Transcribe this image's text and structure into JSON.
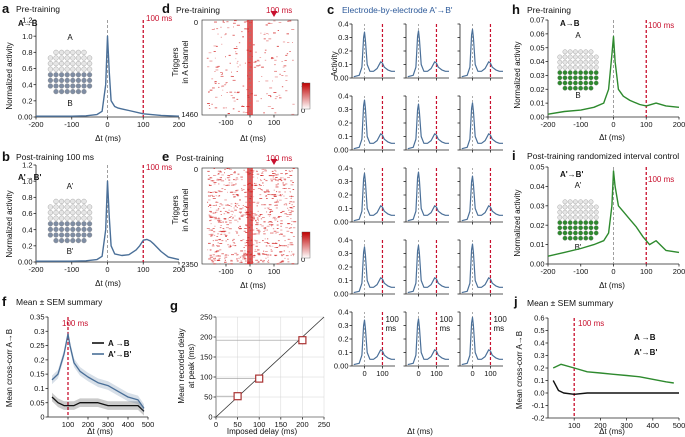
{
  "colors": {
    "blue": "#4a6f98",
    "green": "#2e8a2e",
    "red": "#c8102e",
    "gray": "#9da3ad",
    "grid": "#999999"
  },
  "panels": {
    "a": {
      "letter": "a",
      "title": "Pre-training",
      "pair": "A→B",
      "label_top": "A",
      "label_bottom": "B",
      "ylabel": "Normalized activity",
      "xlabel": "Δt (ms)",
      "marker": "100 ms"
    },
    "b": {
      "letter": "b",
      "title": "Post-training 100 ms",
      "pair": "A'→B'",
      "label_top": "A'",
      "label_bottom": "B'",
      "ylabel": "Normalized activity",
      "xlabel": "Δt (ms)",
      "marker": "100 ms"
    },
    "c": {
      "letter": "c",
      "title": "Electrode-by-electrode A'→B'",
      "ylabel": "Activity",
      "xlabel": "Δt (ms)",
      "marker": "100 ms",
      "marker_line1": "100",
      "marker_line2": "ms"
    },
    "d": {
      "letter": "d",
      "title": "Pre-training",
      "marker": "100 ms",
      "ylabel_line1": "Triggers",
      "ylabel_line2": "in A channel",
      "xlabel": "Δt (ms)",
      "ymax_label": "1460",
      "scale_max": "1",
      "scale_min": "0"
    },
    "e": {
      "letter": "e",
      "title": "Post-training",
      "marker": "100 ms",
      "ylabel_line1": "Triggers",
      "ylabel_line2": "in A channel",
      "xlabel": "Δt (ms)",
      "ymax_label": "2350",
      "scale_max": "1",
      "scale_min": "0"
    },
    "f": {
      "letter": "f",
      "title": "Mean ± SEM summary",
      "ylabel": "Mean cross-corr A→B",
      "xlabel": "Δt (ms)",
      "marker": "100 ms",
      "legend": [
        "A →B",
        "A'→B'"
      ]
    },
    "g": {
      "letter": "g",
      "ylabel_line1": "Mean recorded delay",
      "ylabel_line2": "at peak (ms)",
      "xlabel": "Imposed delay (ms)"
    },
    "h": {
      "letter": "h",
      "title": "Pre-training",
      "pair": "A→B",
      "label_top": "A",
      "label_bottom": "B",
      "ylabel": "Normalized activity",
      "xlabel": "Δt (ms)",
      "marker": "100 ms"
    },
    "i": {
      "letter": "i",
      "title": "Post-training randomized interval control",
      "pair": "A'→B'",
      "label_top": "A'",
      "label_bottom": "B'",
      "ylabel": "Normalized activity",
      "xlabel": "Δt (ms)",
      "marker": "100 ms"
    },
    "j": {
      "letter": "j",
      "title": "Mean ± SEM summary",
      "ylabel": "Mean cross-corr A→B",
      "xlabel": "Δt (ms)",
      "marker": "100 ms",
      "legend": [
        "A →B",
        "A'→B'"
      ]
    }
  },
  "chart_data": [
    {
      "id": "a",
      "type": "line",
      "xlim": [
        -200,
        200
      ],
      "ylim": [
        0,
        1.2
      ],
      "xticks": [
        -200,
        -100,
        0,
        100,
        200
      ],
      "yticks": [
        0,
        0.2,
        0.4,
        0.6,
        0.8,
        1.0,
        1.2
      ],
      "ytick_labels": [
        "0.00",
        "0.2",
        "0.4",
        "0.6",
        "0.8",
        "1.0",
        "1.2"
      ],
      "x": [
        -200,
        -150,
        -100,
        -60,
        -30,
        -15,
        -5,
        0,
        5,
        10,
        20,
        30,
        40,
        60,
        100,
        150,
        200
      ],
      "y": [
        0.01,
        0.01,
        0.01,
        0.015,
        0.03,
        0.07,
        0.4,
        1.0,
        0.55,
        0.2,
        0.13,
        0.11,
        0.1,
        0.08,
        0.04,
        0.02,
        0.01
      ]
    },
    {
      "id": "b",
      "type": "line",
      "xlim": [
        -200,
        200
      ],
      "ylim": [
        0,
        1.2
      ],
      "xticks": [
        -200,
        -100,
        0,
        100,
        200
      ],
      "yticks": [
        0,
        0.2,
        0.4,
        0.6,
        0.8,
        1.0,
        1.2
      ],
      "ytick_labels": [
        "0.00",
        "0.2",
        "0.4",
        "0.6",
        "0.8",
        "1.0",
        "1.2"
      ],
      "x": [
        -200,
        -150,
        -100,
        -60,
        -30,
        -15,
        -5,
        0,
        5,
        10,
        20,
        40,
        60,
        80,
        90,
        100,
        110,
        120,
        130,
        150,
        170,
        200
      ],
      "y": [
        0.01,
        0.01,
        0.01,
        0.015,
        0.03,
        0.07,
        0.4,
        1.0,
        0.55,
        0.2,
        0.1,
        0.08,
        0.09,
        0.15,
        0.2,
        0.27,
        0.28,
        0.26,
        0.22,
        0.13,
        0.06,
        0.03
      ]
    },
    {
      "id": "c",
      "type": "line",
      "rows": 5,
      "cols": 3,
      "xticks": [
        0,
        100
      ],
      "ylim": [
        0,
        0.4
      ],
      "yticks": [
        0,
        0.1,
        0.2,
        0.3,
        0.4
      ],
      "ytick_labels": [
        "0.00",
        "0.1",
        "0.2",
        "0.3",
        "0.4"
      ],
      "x": [
        -60,
        -30,
        -15,
        -5,
        0,
        5,
        15,
        30,
        50,
        70,
        90,
        100,
        110,
        130,
        150,
        170
      ],
      "y": [
        0.01,
        0.02,
        0.08,
        0.3,
        0.34,
        0.28,
        0.1,
        0.05,
        0.05,
        0.07,
        0.12,
        0.11,
        0.08,
        0.06,
        0.05,
        0.05
      ]
    },
    {
      "id": "d",
      "type": "heatmap",
      "xlim": [
        -200,
        200
      ],
      "xticks": [
        -100,
        0,
        100
      ],
      "ylim": [
        0,
        1460
      ],
      "yticks": [
        0,
        1460
      ],
      "color_range": [
        0,
        1
      ]
    },
    {
      "id": "e",
      "type": "heatmap",
      "xlim": [
        -200,
        200
      ],
      "xticks": [
        -100,
        0,
        100
      ],
      "ylim": [
        0,
        2350
      ],
      "yticks": [
        0,
        2350
      ],
      "color_range": [
        0,
        1
      ]
    },
    {
      "id": "f",
      "type": "line",
      "xlim": [
        0,
        500
      ],
      "ylim": [
        0,
        0.35
      ],
      "xticks": [
        100,
        200,
        300,
        400,
        500
      ],
      "yticks": [
        0,
        0.05,
        0.1,
        0.15,
        0.2,
        0.25,
        0.3,
        0.35
      ],
      "ytick_labels": [
        "0",
        "0.05",
        "0.1",
        "0.15",
        "0.2",
        "0.25",
        "0.3",
        "0.35"
      ],
      "series": [
        {
          "name": "A →B",
          "color": "#111111",
          "x": [
            20,
            50,
            80,
            100,
            130,
            160,
            200,
            250,
            300,
            350,
            400,
            450,
            480
          ],
          "y": [
            0.07,
            0.05,
            0.04,
            0.04,
            0.04,
            0.05,
            0.05,
            0.05,
            0.04,
            0.04,
            0.04,
            0.04,
            0.02
          ]
        },
        {
          "name": "A'→B'",
          "color": "#4a6f98",
          "x": [
            20,
            50,
            80,
            100,
            110,
            130,
            160,
            200,
            250,
            300,
            350,
            400,
            450,
            480
          ],
          "y": [
            0.13,
            0.15,
            0.22,
            0.29,
            0.25,
            0.19,
            0.16,
            0.14,
            0.12,
            0.11,
            0.09,
            0.07,
            0.06,
            0.03
          ]
        }
      ]
    },
    {
      "id": "g",
      "type": "scatter",
      "xlim": [
        0,
        250
      ],
      "ylim": [
        0,
        250
      ],
      "xticks": [
        0,
        50,
        100,
        150,
        200,
        250
      ],
      "yticks": [
        0,
        50,
        100,
        150,
        200,
        250
      ],
      "x": [
        50,
        100,
        200
      ],
      "y": [
        52,
        96,
        192
      ],
      "err": [
        8,
        8,
        10
      ]
    },
    {
      "id": "h",
      "type": "line",
      "xlim": [
        -200,
        200
      ],
      "ylim": [
        0,
        0.07
      ],
      "xticks": [
        -200,
        -100,
        0,
        100,
        200
      ],
      "yticks": [
        0,
        0.01,
        0.02,
        0.03,
        0.04,
        0.05,
        0.06,
        0.07
      ],
      "ytick_labels": [
        "0.00",
        "0.01",
        "0.02",
        "0.03",
        "0.04",
        "0.05",
        "0.06",
        "0.07"
      ],
      "x": [
        -200,
        -150,
        -100,
        -60,
        -30,
        -15,
        -5,
        0,
        5,
        15,
        30,
        50,
        80,
        100,
        130,
        160,
        200
      ],
      "y": [
        0.002,
        0.004,
        0.005,
        0.007,
        0.01,
        0.02,
        0.045,
        0.058,
        0.04,
        0.02,
        0.015,
        0.012,
        0.009,
        0.008,
        0.01,
        0.008,
        0.007
      ]
    },
    {
      "id": "i",
      "type": "line",
      "xlim": [
        -200,
        200
      ],
      "ylim": [
        0,
        0.05
      ],
      "xticks": [
        -200,
        -100,
        0,
        100,
        200
      ],
      "yticks": [
        0,
        0.01,
        0.02,
        0.03,
        0.04,
        0.05
      ],
      "ytick_labels": [
        "0.00",
        "0.01",
        "0.02",
        "0.03",
        "0.04",
        "0.05"
      ],
      "x": [
        -200,
        -150,
        -100,
        -60,
        -30,
        -15,
        -5,
        0,
        5,
        15,
        30,
        50,
        70,
        90,
        110,
        130,
        160,
        200
      ],
      "y": [
        0.004,
        0.006,
        0.008,
        0.01,
        0.012,
        0.016,
        0.03,
        0.048,
        0.04,
        0.03,
        0.027,
        0.023,
        0.019,
        0.014,
        0.01,
        0.012,
        0.007,
        0.006
      ]
    },
    {
      "id": "j",
      "type": "line",
      "xlim": [
        0,
        500
      ],
      "ylim": [
        -0.2,
        0.6
      ],
      "xticks": [
        100,
        200,
        300,
        400,
        500
      ],
      "yticks": [
        -0.2,
        -0.1,
        0,
        0.1,
        0.2,
        0.3,
        0.4,
        0.5,
        0.6
      ],
      "ytick_labels": [
        "-0.2",
        "-0.1",
        "0.0",
        "0.1",
        "0.2",
        "0.3",
        "0.4",
        "0.5",
        "0.6"
      ],
      "series": [
        {
          "name": "A →B",
          "color": "#111111",
          "x": [
            20,
            40,
            60,
            100,
            150,
            200,
            300,
            400,
            500
          ],
          "y": [
            0.1,
            0.02,
            0.0,
            -0.01,
            0.0,
            0.0,
            0.0,
            0.0,
            0.0
          ]
        },
        {
          "name": "A'→B'",
          "color": "#2e8a2e",
          "x": [
            20,
            50,
            100,
            150,
            200,
            250,
            300,
            350,
            400,
            450,
            480
          ],
          "y": [
            0.2,
            0.23,
            0.2,
            0.17,
            0.16,
            0.15,
            0.14,
            0.13,
            0.11,
            0.09,
            0.08
          ]
        }
      ]
    }
  ]
}
